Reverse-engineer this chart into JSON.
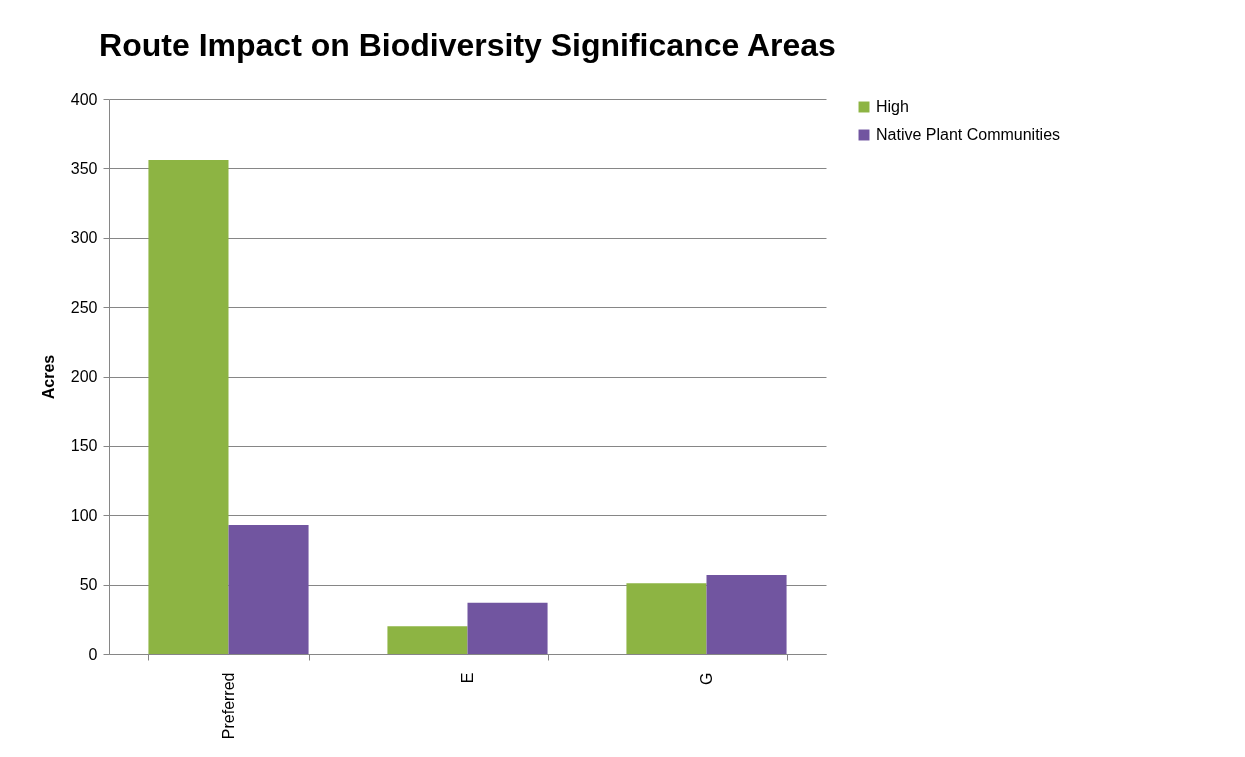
{
  "chart_data": {
    "type": "bar",
    "title": "Route Impact on Biodiversity Significance Areas",
    "ylabel": "Acres",
    "categories": [
      "Preferred",
      "E",
      "G"
    ],
    "series": [
      {
        "name": "High",
        "color": "#8db443",
        "values": [
          356,
          20,
          51
        ]
      },
      {
        "name": "Native Plant Communities",
        "color": "#7155a0",
        "values": [
          93,
          37,
          57
        ]
      }
    ],
    "ylim": [
      0,
      400
    ],
    "yticks": [
      0,
      50,
      100,
      150,
      200,
      250,
      300,
      350,
      400
    ],
    "grid": "y",
    "legend": "right"
  }
}
